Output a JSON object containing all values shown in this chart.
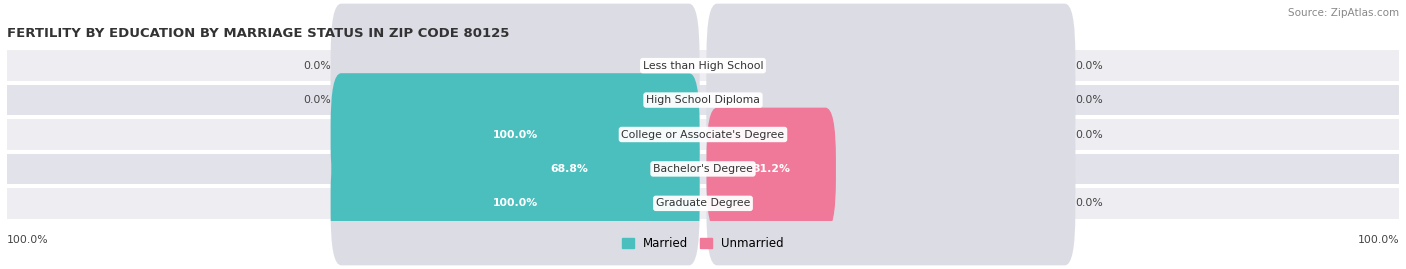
{
  "title": "FERTILITY BY EDUCATION BY MARRIAGE STATUS IN ZIP CODE 80125",
  "source": "Source: ZipAtlas.com",
  "categories": [
    "Less than High School",
    "High School Diploma",
    "College or Associate's Degree",
    "Bachelor's Degree",
    "Graduate Degree"
  ],
  "married": [
    0.0,
    0.0,
    100.0,
    68.8,
    100.0
  ],
  "unmarried": [
    0.0,
    0.0,
    0.0,
    31.2,
    0.0
  ],
  "married_color": "#4BBFBE",
  "unmarried_color": "#F07898",
  "bar_bg_color": "#DCDCE4",
  "row_bg_even": "#EDEDF2",
  "row_bg_odd": "#E2E2EA",
  "title_color": "#333333",
  "value_color": "#444444",
  "source_color": "#888888",
  "legend_married": "Married",
  "legend_unmarried": "Unmarried",
  "figsize": [
    14.06,
    2.69
  ],
  "dpi": 100
}
